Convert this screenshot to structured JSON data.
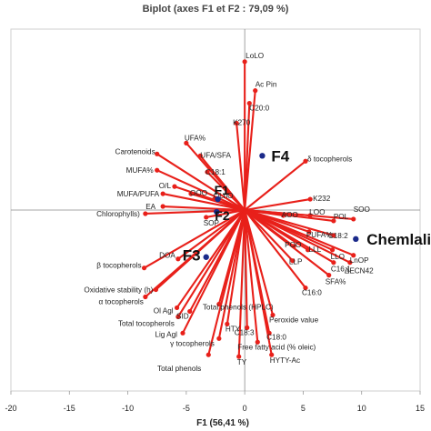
{
  "chart_data": {
    "type": "biplot",
    "title": "Biplot (axes F1 et F2 : 79,09 %)",
    "xlabel": "F1 (56,41 %)",
    "ylabel": "",
    "xlim": [
      -20,
      15
    ],
    "ylim": [
      -10,
      10
    ],
    "xticks": [
      "-20",
      "-15",
      "-10",
      "-5",
      "0",
      "5",
      "10",
      "15"
    ],
    "series_colors": {
      "variables": "#e8201a",
      "observations": "#1b2a8a"
    },
    "variables": [
      {
        "name": "LoLO",
        "x": 0.0,
        "y": 8.2
      },
      {
        "name": "Ac Pin",
        "x": 0.9,
        "y": 6.6
      },
      {
        "name": "C20:0",
        "x": 0.4,
        "y": 5.9
      },
      {
        "name": "K270",
        "x": -0.7,
        "y": 4.8
      },
      {
        "name": "UFA%",
        "x": -5.0,
        "y": 3.7
      },
      {
        "name": "Carotenoids",
        "x": -7.5,
        "y": 3.1
      },
      {
        "name": "UFA/SFA",
        "x": -3.8,
        "y": 3.0
      },
      {
        "name": "MUFA%",
        "x": -7.5,
        "y": 2.2
      },
      {
        "name": "C18:1",
        "x": -3.2,
        "y": 2.1
      },
      {
        "name": "O/L",
        "x": -6.0,
        "y": 1.3
      },
      {
        "name": "MUFA/PUFA",
        "x": -7.0,
        "y": 0.9
      },
      {
        "name": "OOO",
        "x": -4.6,
        "y": 0.9
      },
      {
        "name": "OLnO",
        "x": -2.6,
        "y": 0.6
      },
      {
        "name": "EA",
        "x": -7.0,
        "y": 0.2
      },
      {
        "name": "Chlorophylls)",
        "x": -8.5,
        "y": -0.2
      },
      {
        "name": "SOP",
        "x": -3.3,
        "y": -0.4
      },
      {
        "name": "DOA",
        "x": -5.7,
        "y": -2.7
      },
      {
        "name": "β tocopherols",
        "x": -8.6,
        "y": -3.2
      },
      {
        "name": "Oxidative stability (h)",
        "x": -7.6,
        "y": -4.4
      },
      {
        "name": "α tocopherols",
        "x": -8.5,
        "y": -4.8
      },
      {
        "name": "Ol Agl",
        "x": -5.8,
        "y": -5.4
      },
      {
        "name": "Total tocopherols",
        "x": -5.7,
        "y": -5.9
      },
      {
        "name": "SID",
        "x": -4.7,
        "y": -5.6
      },
      {
        "name": "Lig Agl",
        "x": -5.3,
        "y": -6.8
      },
      {
        "name": "Total phenols (HPLC)",
        "x": -2.2,
        "y": -5.2
      },
      {
        "name": "HTY",
        "x": -1.5,
        "y": -6.3
      },
      {
        "name": "γ tocopherols",
        "x": -2.2,
        "y": -7.1
      },
      {
        "name": "C18:3",
        "x": 0.2,
        "y": -6.5
      },
      {
        "name": "Total phenols",
        "x": -3.1,
        "y": -8.0
      },
      {
        "name": "Free fatty acid (% oleic)",
        "x": 1.1,
        "y": -7.3
      },
      {
        "name": "C18:0",
        "x": 2.1,
        "y": -6.8
      },
      {
        "name": "TY",
        "x": -0.5,
        "y": -8.1
      },
      {
        "name": "Peroxide value",
        "x": 2.4,
        "y": -5.8
      },
      {
        "name": "HYTY-Ac",
        "x": 2.3,
        "y": -8.0
      },
      {
        "name": "δ tocopherols",
        "x": 5.2,
        "y": 2.7
      },
      {
        "name": "K232",
        "x": 5.6,
        "y": 0.6
      },
      {
        "name": "AOO",
        "x": 3.3,
        "y": -0.3
      },
      {
        "name": "LOO",
        "x": 5.6,
        "y": -0.3
      },
      {
        "name": "POL",
        "x": 7.6,
        "y": -0.6
      },
      {
        "name": "SOO",
        "x": 9.3,
        "y": -0.5
      },
      {
        "name": "PUFA%",
        "x": 5.5,
        "y": -1.2
      },
      {
        "name": "C18:2",
        "x": 7.6,
        "y": -1.4
      },
      {
        "name": "POO",
        "x": 4.2,
        "y": -2.0
      },
      {
        "name": "LLL",
        "x": 5.4,
        "y": -2.2
      },
      {
        "name": "LLO",
        "x": 7.5,
        "y": -2.2
      },
      {
        "name": "LLP",
        "x": 4.1,
        "y": -2.8
      },
      {
        "name": "C16:1",
        "x": 7.6,
        "y": -2.9
      },
      {
        "name": "LnOP",
        "x": 9.3,
        "y": -2.5
      },
      {
        "name": "ΔECN42",
        "x": 9.0,
        "y": -2.9
      },
      {
        "name": "SFA%",
        "x": 7.2,
        "y": -3.6
      },
      {
        "name": "C16:0",
        "x": 5.2,
        "y": -4.3
      }
    ],
    "observations": [
      {
        "name": "F4",
        "x": 1.5,
        "y": 3.0
      },
      {
        "name": "F1",
        "x": -2.3,
        "y": 0.6
      },
      {
        "name": "F2",
        "x": -2.4,
        "y": -0.1
      },
      {
        "name": "F3",
        "x": -3.3,
        "y": -2.6
      },
      {
        "name": "Chemlali",
        "x": 9.5,
        "y": -1.6
      }
    ]
  }
}
